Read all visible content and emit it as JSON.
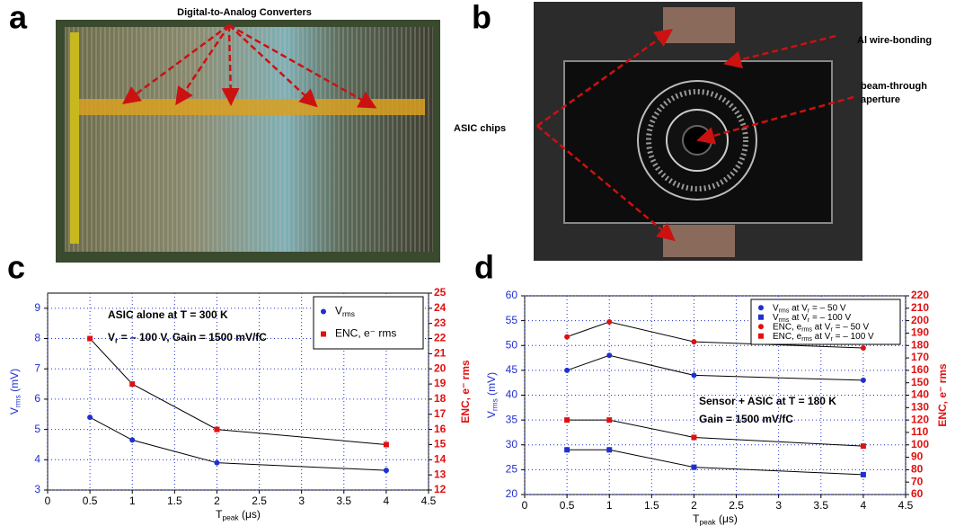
{
  "panel_labels": [
    "a",
    "b",
    "c",
    "d"
  ],
  "photos": [
    {
      "annotations": [
        "Digital-to-Analog Converters"
      ]
    },
    {
      "annotations": [
        "Al wire-bonding",
        "beam-through",
        "aperture",
        "ASIC chips"
      ]
    }
  ],
  "chart_data": [
    {
      "type": "line",
      "xlabel": [
        "T",
        "peak",
        " (μs)"
      ],
      "ylabel": [
        "V",
        "rms",
        " (mV)"
      ],
      "y2label": [
        "ENC, e⁻ rms"
      ],
      "annotations": [
        [
          "ASIC alone at T = 300 K"
        ],
        [
          "V",
          "r",
          " = – 100 V, Gain = 1500 mV/fC"
        ]
      ],
      "xlim": [
        0,
        4.5
      ],
      "xticks": [
        0,
        0.5,
        1,
        1.5,
        2,
        2.5,
        3,
        3.5,
        4,
        4.5
      ],
      "ylim": [
        3,
        9.5
      ],
      "yticks": [
        3,
        4,
        5,
        6,
        7,
        8,
        9
      ],
      "y2lim": [
        12,
        25
      ],
      "y2ticks": [
        12,
        13,
        14,
        15,
        16,
        17,
        18,
        19,
        20,
        21,
        22,
        23,
        24,
        25
      ],
      "grid": true,
      "legend": "upper right",
      "line_color": "#000000",
      "axis_colors": {
        "y": "#1f2fd0",
        "y2": "#e01010"
      },
      "x": [
        0.5,
        1,
        2,
        4
      ],
      "series": [
        {
          "name": [
            "V",
            "rms"
          ],
          "color": "#1f2fd0",
          "marker": "circle",
          "values": [
            5.4,
            4.65,
            3.9,
            3.65
          ]
        },
        {
          "name": [
            "ENC, e⁻ rms"
          ],
          "color": "#e01010",
          "marker": "square",
          "axis": "y2",
          "values": [
            22,
            19,
            16,
            15
          ]
        }
      ]
    },
    {
      "type": "line",
      "xlabel": [
        "T",
        "peak",
        " (μs)"
      ],
      "ylabel": [
        "V",
        "rms",
        " (mV)"
      ],
      "y2label": [
        "ENC, e⁻ rms"
      ],
      "annotations": [
        [
          "Sensor + ASIC at T = 180 K"
        ],
        [
          "Gain = 1500 mV/fC"
        ]
      ],
      "xlim": [
        0,
        4.5
      ],
      "xticks": [
        0,
        0.5,
        1,
        1.5,
        2,
        2.5,
        3,
        3.5,
        4,
        4.5
      ],
      "ylim": [
        20,
        60
      ],
      "yticks": [
        20,
        25,
        30,
        35,
        40,
        45,
        50,
        55,
        60
      ],
      "y2lim": [
        60,
        220
      ],
      "y2ticks": [
        60,
        70,
        80,
        90,
        100,
        110,
        120,
        130,
        140,
        150,
        160,
        170,
        180,
        190,
        200,
        210,
        220
      ],
      "grid": true,
      "legend": "upper right",
      "line_color": "#000000",
      "axis_colors": {
        "y": "#1f2fd0",
        "y2": "#e01010"
      },
      "x": [
        0.5,
        1,
        2,
        4
      ],
      "series": [
        {
          "name": [
            "V",
            "rms",
            " at V",
            "r",
            " = – 50 V"
          ],
          "color": "#1f2fd0",
          "marker": "circle",
          "values": [
            45,
            48,
            44,
            43
          ]
        },
        {
          "name": [
            "V",
            "rms",
            " at V",
            "r",
            " = – 100 V"
          ],
          "color": "#1f2fd0",
          "marker": "square",
          "values": [
            29,
            29,
            25.5,
            24
          ]
        },
        {
          "name": [
            "ENC, e",
            "rms",
            " at V",
            "r",
            " = – 50 V"
          ],
          "color": "#e01010",
          "marker": "circle",
          "axis": "y2",
          "values": [
            187,
            199,
            183,
            178
          ]
        },
        {
          "name": [
            "ENC, e",
            "rms",
            " at V",
            "r",
            " = – 100 V"
          ],
          "color": "#e01010",
          "marker": "square",
          "axis": "y2",
          "values": [
            120,
            120,
            106,
            99
          ]
        }
      ]
    }
  ]
}
